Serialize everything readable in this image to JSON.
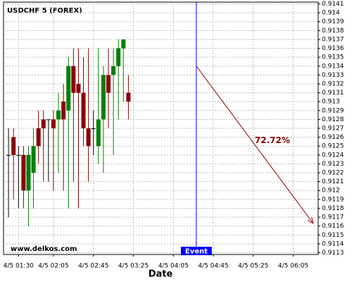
{
  "chart_data": {
    "type": "candlestick",
    "title": "USDCHF 5 (FOREX)",
    "x_label": "Date",
    "watermark": "www.delkos.com",
    "x": [
      80,
      85,
      90,
      95,
      100,
      105,
      110,
      115,
      120,
      125,
      130,
      135,
      140,
      145,
      150,
      155,
      160,
      165,
      170,
      175,
      180,
      185,
      190,
      195,
      200
    ],
    "open": [
      0.9124,
      0.9126,
      0.9124,
      0.9124,
      0.912,
      0.9122,
      0.9127,
      0.9128,
      0.9128,
      0.9128,
      0.9128,
      0.913,
      0.9129,
      0.9134,
      0.9132,
      0.9131,
      0.9127,
      0.9127,
      0.9125,
      0.9128,
      0.9133,
      0.9133,
      0.9134,
      0.9136,
      0.9131
    ],
    "high": [
      0.9127,
      0.9127,
      0.9125,
      0.9125,
      0.9125,
      0.9127,
      0.9129,
      0.9129,
      0.9128,
      0.9129,
      0.9131,
      0.9132,
      0.9135,
      0.9136,
      0.9136,
      0.9135,
      0.9136,
      0.9129,
      0.9136,
      0.9134,
      0.9136,
      0.9136,
      0.9137,
      0.9137,
      0.9133
    ],
    "low": [
      0.9117,
      0.9119,
      0.9118,
      0.9118,
      0.9116,
      0.9118,
      0.9123,
      0.9121,
      0.9121,
      0.912,
      0.9122,
      0.912,
      0.9118,
      0.9121,
      0.9118,
      0.9125,
      0.9121,
      0.9124,
      0.9123,
      0.9122,
      0.9127,
      0.9124,
      0.9128,
      0.913,
      0.9128
    ],
    "close": [
      0.9124,
      0.9124,
      0.9124,
      0.912,
      0.9124,
      0.9125,
      0.9125,
      0.9127,
      0.9128,
      0.9127,
      0.9129,
      0.9128,
      0.9134,
      0.9131,
      0.9131,
      0.9127,
      0.9125,
      0.9127,
      0.9128,
      0.9133,
      0.9131,
      0.9134,
      0.9136,
      0.9137,
      0.913
    ],
    "up_color": "#008000",
    "down_color": "#8b0000",
    "xlim": [
      75,
      390
    ],
    "ylim": [
      0.91128,
      0.91412
    ],
    "xticks": [
      {
        "value": 90,
        "label": "4/5 01:30"
      },
      {
        "value": 125,
        "label": "4/5 02:05"
      },
      {
        "value": 165,
        "label": "4/5 02:45"
      },
      {
        "value": 205,
        "label": "4/5 03:25"
      },
      {
        "value": 245,
        "label": "4/5 04:05"
      },
      {
        "value": 285,
        "label": "4/5 04:45"
      },
      {
        "value": 325,
        "label": "4/5 05:25"
      },
      {
        "value": 365,
        "label": "4/5 06:05"
      }
    ],
    "yticks": [
      0.9113,
      0.9114,
      0.9115,
      0.9116,
      0.9117,
      0.9118,
      0.9119,
      0.912,
      0.9121,
      0.9122,
      0.9123,
      0.9124,
      0.9125,
      0.9126,
      0.9127,
      0.9128,
      0.9129,
      0.913,
      0.9131,
      0.9132,
      0.9133,
      0.9134,
      0.9135,
      0.9136,
      0.9137,
      0.9138,
      0.9139,
      0.914,
      0.9141
    ],
    "grid": true,
    "event": {
      "x": 268,
      "label": "Event"
    },
    "forecast": {
      "x": [
        268,
        385
      ],
      "y": [
        0.9134,
        0.91163
      ],
      "label": "72.72%",
      "color": "#8b0000"
    }
  }
}
